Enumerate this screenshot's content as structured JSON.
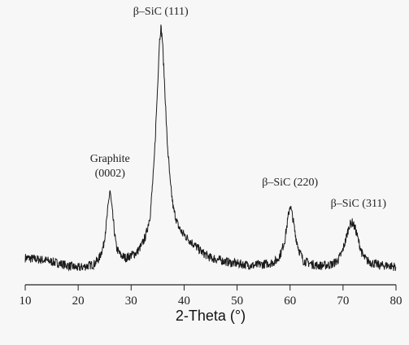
{
  "chart_data": {
    "type": "line",
    "xlabel": "2-Theta (°)",
    "ylabel": "",
    "xlim": [
      10,
      80
    ],
    "ylim": [
      0,
      100
    ],
    "y_axis_visible": false,
    "grid": false,
    "x_ticks": [
      10,
      20,
      30,
      40,
      50,
      60,
      70,
      80
    ],
    "series": [
      {
        "color": "#1a1a1a",
        "x": [
          10,
          12,
          14,
          16,
          18,
          20,
          21,
          22,
          23,
          24,
          24.8,
          25.4,
          26,
          26.6,
          27.2,
          28,
          29,
          30,
          31,
          32,
          32.8,
          33.6,
          34.3,
          34.9,
          35.3,
          35.6,
          35.9,
          36.3,
          36.8,
          37.4,
          38,
          38.8,
          39.6,
          40.5,
          41.5,
          42.5,
          43.5,
          45,
          47,
          49,
          51,
          53,
          55,
          56.5,
          57.5,
          58.3,
          59,
          59.5,
          60,
          60.5,
          61,
          61.7,
          62.5,
          63.5,
          65,
          66.5,
          68,
          69,
          69.8,
          70.5,
          71.2,
          71.8,
          72.4,
          73,
          73.7,
          74.5,
          75.5,
          77,
          78.5,
          80
        ],
        "y": [
          9,
          8.5,
          8,
          7,
          6,
          5,
          5.5,
          6,
          6.5,
          9,
          14,
          24,
          36,
          24,
          13,
          10,
          9,
          10,
          11,
          14,
          18,
          26,
          45,
          72,
          93,
          100,
          95,
          78,
          55,
          38,
          28,
          22,
          19,
          17,
          15,
          13,
          11,
          9,
          8,
          7,
          6.5,
          6,
          6.5,
          7,
          8,
          11,
          16,
          23,
          30,
          25,
          18,
          12,
          8,
          7,
          6,
          6,
          6.5,
          8,
          11,
          16,
          22,
          23,
          20,
          15,
          10,
          8,
          7,
          6,
          6,
          5.5
        ]
      }
    ],
    "annotations": [
      {
        "text": "β–SiC (111)",
        "x": 35.6
      },
      {
        "text": "Graphite",
        "x": 26
      },
      {
        "text": "(0002)",
        "x": 26
      },
      {
        "text": "β–SiC (220)",
        "x": 60
      },
      {
        "text": "β–SiC (311)",
        "x": 72
      }
    ]
  }
}
